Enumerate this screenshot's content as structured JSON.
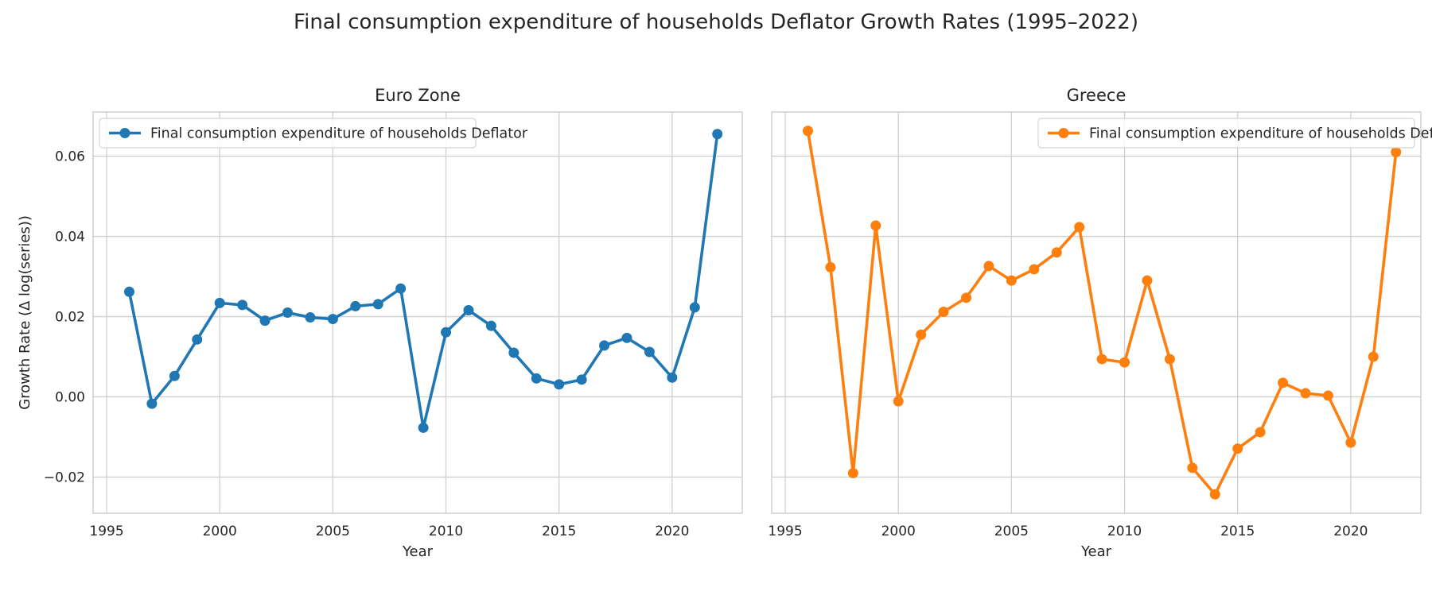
{
  "suptitle": "Final consumption expenditure of households Deflator Growth Rates (1995–2022)",
  "chart_data": [
    {
      "type": "line",
      "title": "Euro Zone",
      "xlabel": "Year",
      "ylabel": "Growth Rate (Δ log(series))",
      "xlim": [
        1994.4,
        2023.1
      ],
      "ylim": [
        -0.029,
        0.071
      ],
      "xticks": [
        1995,
        2000,
        2005,
        2010,
        2015,
        2020
      ],
      "xtick_labels": [
        "1995",
        "2000",
        "2005",
        "2010",
        "2015",
        "2020"
      ],
      "yticks": [
        -0.02,
        0.0,
        0.02,
        0.04,
        0.06
      ],
      "ytick_labels": [
        "−0.02",
        "0.00",
        "0.02",
        "0.04",
        "0.06"
      ],
      "grid": true,
      "legend_position": "upper-left",
      "series": [
        {
          "name": "Final consumption expenditure of households Deflator",
          "color": "#1f77b4",
          "x": [
            1996,
            1997,
            1998,
            1999,
            2000,
            2001,
            2002,
            2003,
            2004,
            2005,
            2006,
            2007,
            2008,
            2009,
            2010,
            2011,
            2012,
            2013,
            2014,
            2015,
            2016,
            2017,
            2018,
            2019,
            2020,
            2021,
            2022
          ],
          "y": [
            0.0262,
            -0.0017,
            0.0052,
            0.0143,
            0.0234,
            0.0229,
            0.019,
            0.021,
            0.0198,
            0.0194,
            0.0226,
            0.0231,
            0.027,
            -0.0077,
            0.0161,
            0.0216,
            0.0177,
            0.011,
            0.0046,
            0.0031,
            0.0043,
            0.0128,
            0.0147,
            0.0112,
            0.0048,
            0.0223,
            0.0655
          ]
        }
      ]
    },
    {
      "type": "line",
      "title": "Greece",
      "xlabel": "Year",
      "ylabel": "",
      "xlim": [
        1994.4,
        2023.1
      ],
      "ylim": [
        -0.029,
        0.071
      ],
      "xticks": [
        1995,
        2000,
        2005,
        2010,
        2015,
        2020
      ],
      "xtick_labels": [
        "1995",
        "2000",
        "2005",
        "2010",
        "2015",
        "2020"
      ],
      "yticks": [
        -0.02,
        0.0,
        0.02,
        0.04,
        0.06
      ],
      "ytick_labels": [],
      "grid": true,
      "legend_position": "upper-right",
      "series": [
        {
          "name": "Final consumption expenditure of households Deflator",
          "color": "#ff7f0e",
          "x": [
            1996,
            1997,
            1998,
            1999,
            2000,
            2001,
            2002,
            2003,
            2004,
            2005,
            2006,
            2007,
            2008,
            2009,
            2010,
            2011,
            2012,
            2013,
            2014,
            2015,
            2016,
            2017,
            2018,
            2019,
            2020,
            2021,
            2022
          ],
          "y": [
            0.0663,
            0.0323,
            -0.019,
            0.0427,
            -0.0011,
            0.0155,
            0.0212,
            0.0247,
            0.0326,
            0.029,
            0.0318,
            0.036,
            0.0423,
            0.0094,
            0.0086,
            0.029,
            0.0094,
            -0.0177,
            -0.0243,
            -0.0129,
            -0.0088,
            0.0035,
            0.0009,
            0.0003,
            -0.0114,
            0.01,
            0.061
          ]
        }
      ]
    }
  ]
}
